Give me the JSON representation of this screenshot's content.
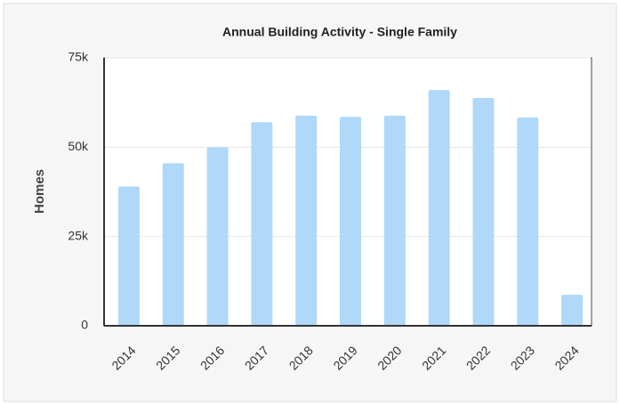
{
  "chart_data": {
    "type": "bar",
    "title": "Annual Building Activity - Single Family",
    "y_label": "Homes",
    "categories": [
      "2014",
      "2015",
      "2016",
      "2017",
      "2018",
      "2019",
      "2020",
      "2021",
      "2022",
      "2023",
      "2024"
    ],
    "values": [
      39000,
      45500,
      50000,
      57000,
      58800,
      58500,
      58800,
      66000,
      63800,
      58300,
      8700
    ],
    "color": "#b0d8f8",
    "ylim": [
      0,
      75000
    ],
    "yticks": [
      0,
      {
        "value": 25000,
        "label": "25k"
      },
      {
        "value": 50000,
        "label": "50k"
      },
      {
        "value": 75000,
        "label": "75k"
      }
    ],
    "grid": true
  }
}
